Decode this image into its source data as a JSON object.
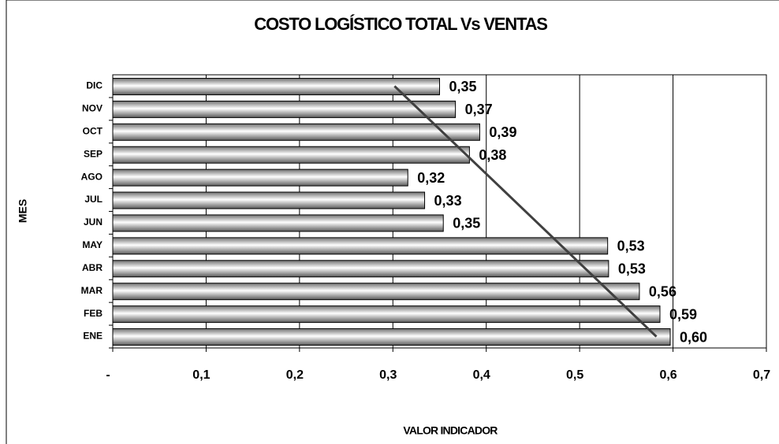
{
  "chart_data": {
    "type": "bar",
    "orientation": "horizontal",
    "title": "COSTO LOGÍSTICO TOTAL Vs VENTAS",
    "x_label": "VALOR INDICADOR",
    "y_label": "MES",
    "categories": [
      "ENE",
      "FEB",
      "MAR",
      "ABR",
      "MAY",
      "JUN",
      "JUL",
      "AGO",
      "SEP",
      "OCT",
      "NOV",
      "DIC"
    ],
    "values": [
      0.597,
      0.586,
      0.564,
      0.531,
      0.53,
      0.354,
      0.334,
      0.316,
      0.382,
      0.393,
      0.367,
      0.35
    ],
    "value_labels": [
      "0,60",
      "0,59",
      "0,56",
      "0,53",
      "0,53",
      "0,35",
      "0,33",
      "0,32",
      "0,38",
      "0,39",
      "0,37",
      "0,35"
    ],
    "color": "#8a8a8a",
    "xlim": [
      0,
      0.7
    ],
    "xticks": [
      {
        "value": 0,
        "label": "-"
      },
      {
        "value": 0.1,
        "label": "0,1"
      },
      {
        "value": 0.2,
        "label": "0,2"
      },
      {
        "value": 0.3,
        "label": "0,3"
      },
      {
        "value": 0.4,
        "label": "0,4"
      },
      {
        "value": 0.5,
        "label": "0,5"
      },
      {
        "value": 0.6,
        "label": "0,6"
      },
      {
        "value": 0.7,
        "label": "0,7"
      }
    ],
    "grid": true,
    "trendline": true,
    "trendline_color": "#404040"
  }
}
